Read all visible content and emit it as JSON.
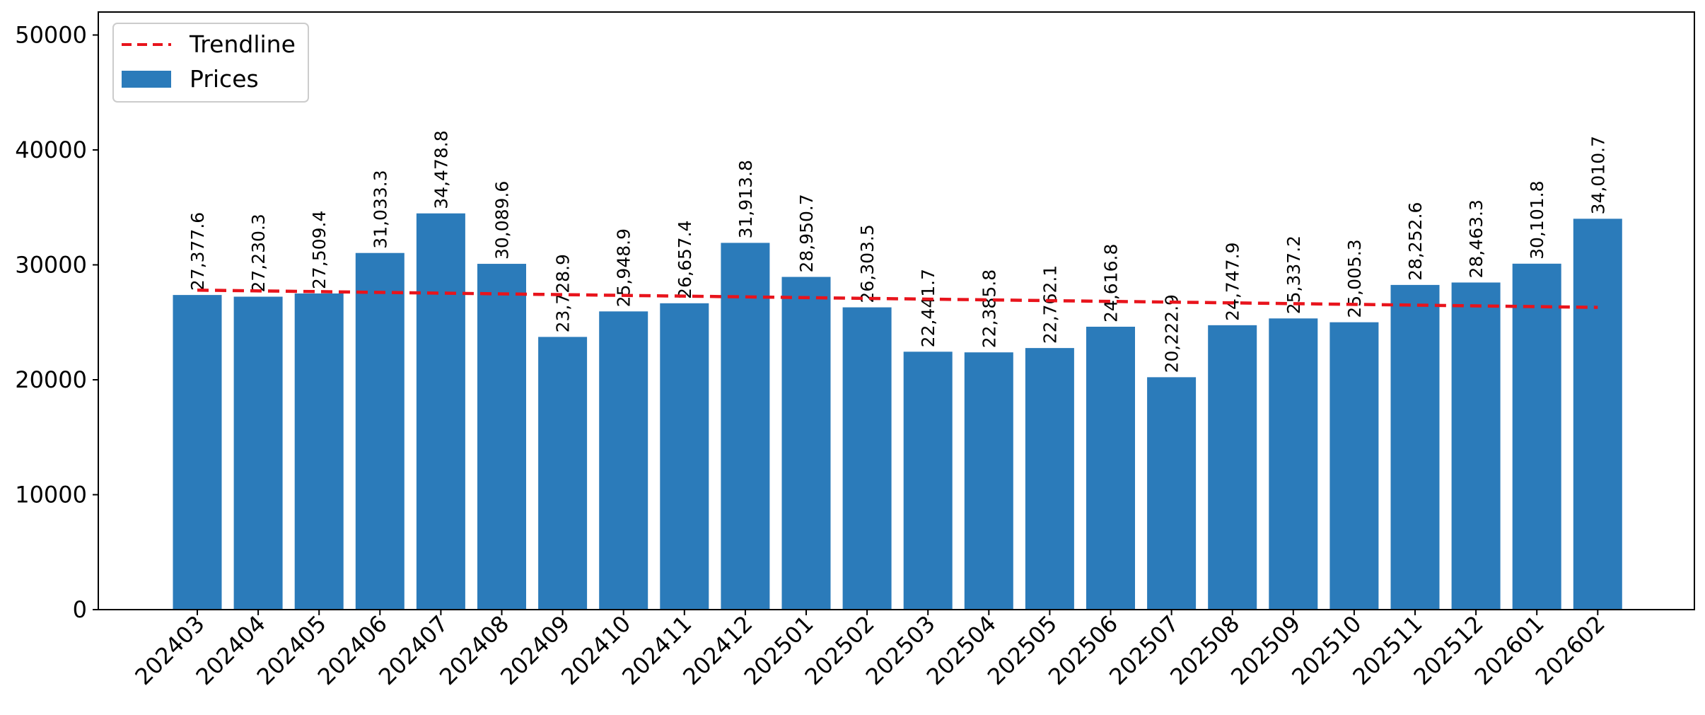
{
  "chart_data": {
    "type": "bar",
    "title": "",
    "xlabel": "",
    "ylabel": "",
    "ylim": [
      0,
      52000
    ],
    "yticks": [
      0,
      10000,
      20000,
      30000,
      40000,
      50000
    ],
    "ytick_labels": [
      "0",
      "10000",
      "20000",
      "30000",
      "40000",
      "50000"
    ],
    "grid": false,
    "legend_position": "upper-left",
    "categories": [
      "202403",
      "202404",
      "202405",
      "202406",
      "202407",
      "202408",
      "202409",
      "202410",
      "202411",
      "202412",
      "202501",
      "202502",
      "202503",
      "202504",
      "202505",
      "202506",
      "202507",
      "202508",
      "202509",
      "202510",
      "202511",
      "202512",
      "202601",
      "202602"
    ],
    "series": [
      {
        "name": "Prices",
        "kind": "bar",
        "color": "#2b7bba",
        "values": [
          27377.6,
          27230.3,
          27509.4,
          31033.3,
          34478.8,
          30089.6,
          23728.9,
          25948.9,
          26657.4,
          31913.8,
          28950.7,
          26303.5,
          22441.7,
          22385.8,
          22762.1,
          24616.8,
          20222.9,
          24747.9,
          25337.2,
          25005.3,
          28252.6,
          28463.3,
          30101.8,
          34010.7
        ],
        "labels": [
          "27,377.6",
          "27,230.3",
          "27,509.4",
          "31,033.3",
          "34,478.8",
          "30,089.6",
          "23,728.9",
          "25,948.9",
          "26,657.4",
          "31,913.8",
          "28,950.7",
          "26,303.5",
          "22,441.7",
          "22,385.8",
          "22,762.1",
          "24,616.8",
          "20,222.9",
          "24,747.9",
          "25,337.2",
          "25,005.3",
          "28,252.6",
          "28,463.3",
          "30,101.8",
          "34,010.7"
        ]
      },
      {
        "name": "Trendline",
        "kind": "line",
        "style": "dashed",
        "color": "#e8141c",
        "start": 27800,
        "end": 26300
      }
    ]
  }
}
